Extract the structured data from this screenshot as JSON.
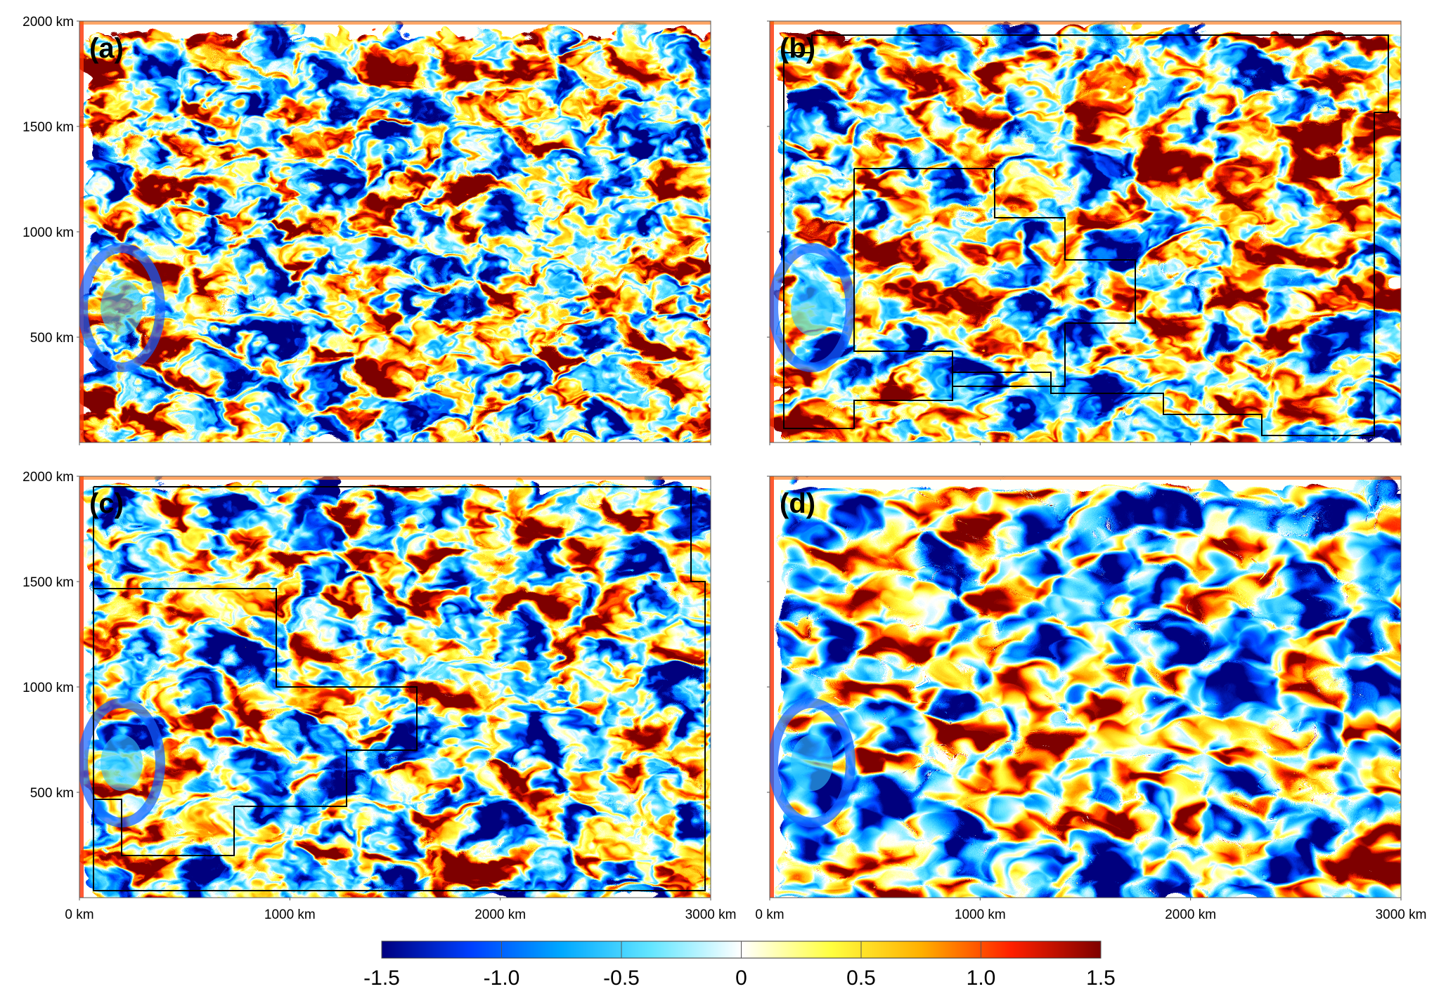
{
  "chart_data": {
    "type": "heatmap",
    "title": "",
    "xlabel": "",
    "ylabel": "",
    "x_ticks": [
      "0 km",
      "1000 km",
      "2000 km",
      "3000 km"
    ],
    "y_ticks": [
      "2000 km",
      "1500 km",
      "1000 km",
      "500 km"
    ],
    "xlim": [
      0,
      3000
    ],
    "ylim": [
      0,
      2000
    ],
    "units": "km",
    "panels": [
      {
        "letter": "(a)",
        "resolution": "fine",
        "refined_regions_outlined": false,
        "x_tick_labels_shown": false,
        "y_tick_labels_shown": true
      },
      {
        "letter": "(b)",
        "resolution": "adaptive",
        "refined_regions_outlined": true,
        "x_tick_labels_shown": false,
        "y_tick_labels_shown": false
      },
      {
        "letter": "(c)",
        "resolution": "adaptive",
        "refined_regions_outlined": true,
        "x_tick_labels_shown": true,
        "y_tick_labels_shown": true
      },
      {
        "letter": "(d)",
        "resolution": "coarse",
        "refined_regions_outlined": false,
        "x_tick_labels_shown": true,
        "y_tick_labels_shown": false
      }
    ],
    "colorbar": {
      "min": -1.5,
      "max": 1.5,
      "tick_values": [
        -1.5,
        -1.0,
        -0.5,
        0,
        0.5,
        1.0,
        1.5
      ],
      "tick_labels": [
        "-1.5",
        "-1.0",
        "-0.5",
        "0",
        "0.5",
        "1.0",
        "1.5"
      ],
      "colormap": [
        "#00007f",
        "#0040ff",
        "#00a8ff",
        "#64e6ff",
        "#ffffff",
        "#ffff40",
        "#ffb000",
        "#ff2000",
        "#7f0000"
      ],
      "orientation": "horizontal",
      "position": "bottom-center"
    }
  }
}
